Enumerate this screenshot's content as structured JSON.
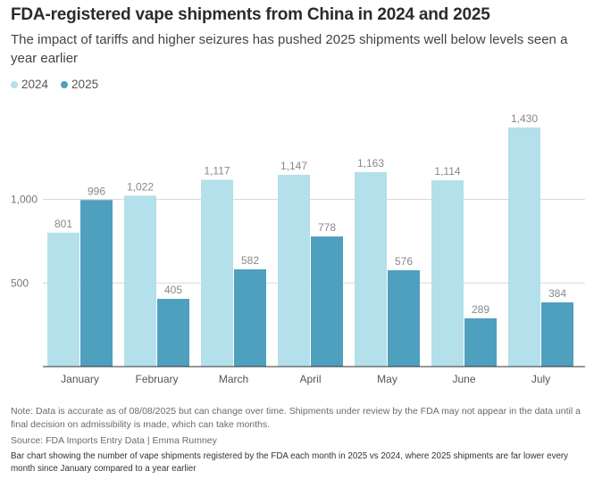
{
  "title": "FDA-registered vape shipments from China in 2024 and 2025",
  "subtitle": "The impact of tariffs and higher seizures has pushed 2025 shipments well below levels seen a year earlier",
  "legend": [
    {
      "label": "2024",
      "color": "#b3e0ea"
    },
    {
      "label": "2025",
      "color": "#4f9fbe"
    }
  ],
  "chart_data": {
    "type": "bar",
    "categories": [
      "January",
      "February",
      "March",
      "April",
      "May",
      "June",
      "July"
    ],
    "series": [
      {
        "name": "2024",
        "color": "#b3e0ea",
        "values": [
          801,
          1022,
          1117,
          1147,
          1163,
          1114,
          1430
        ],
        "labels": [
          "801",
          "1,022",
          "1,117",
          "1,147",
          "1,163",
          "1,114",
          "1,430"
        ]
      },
      {
        "name": "2025",
        "color": "#4f9fbe",
        "values": [
          996,
          405,
          582,
          778,
          576,
          289,
          384
        ],
        "labels": [
          "996",
          "405",
          "582",
          "778",
          "576",
          "289",
          "384"
        ]
      }
    ],
    "yticks": [
      500,
      1000
    ],
    "ytick_labels": [
      "500",
      "1,000"
    ],
    "ylim": [
      0,
      1500
    ],
    "title": "FDA-registered vape shipments from China in 2024 and 2025",
    "xlabel": "",
    "ylabel": ""
  },
  "note": "Note: Data is accurate as of 08/08/2025 but can change over time. Shipments under review by the FDA may not appear in the data until a final decision on admissibility is made, which can take months.",
  "source": "Source: FDA Imports Entry Data | Emma Rumney",
  "caption": "Bar chart showing the number of vape shipments registered by the FDA each month in 2025 vs 2024, where 2025 shipments are far lower every month since January compared to a year earlier"
}
